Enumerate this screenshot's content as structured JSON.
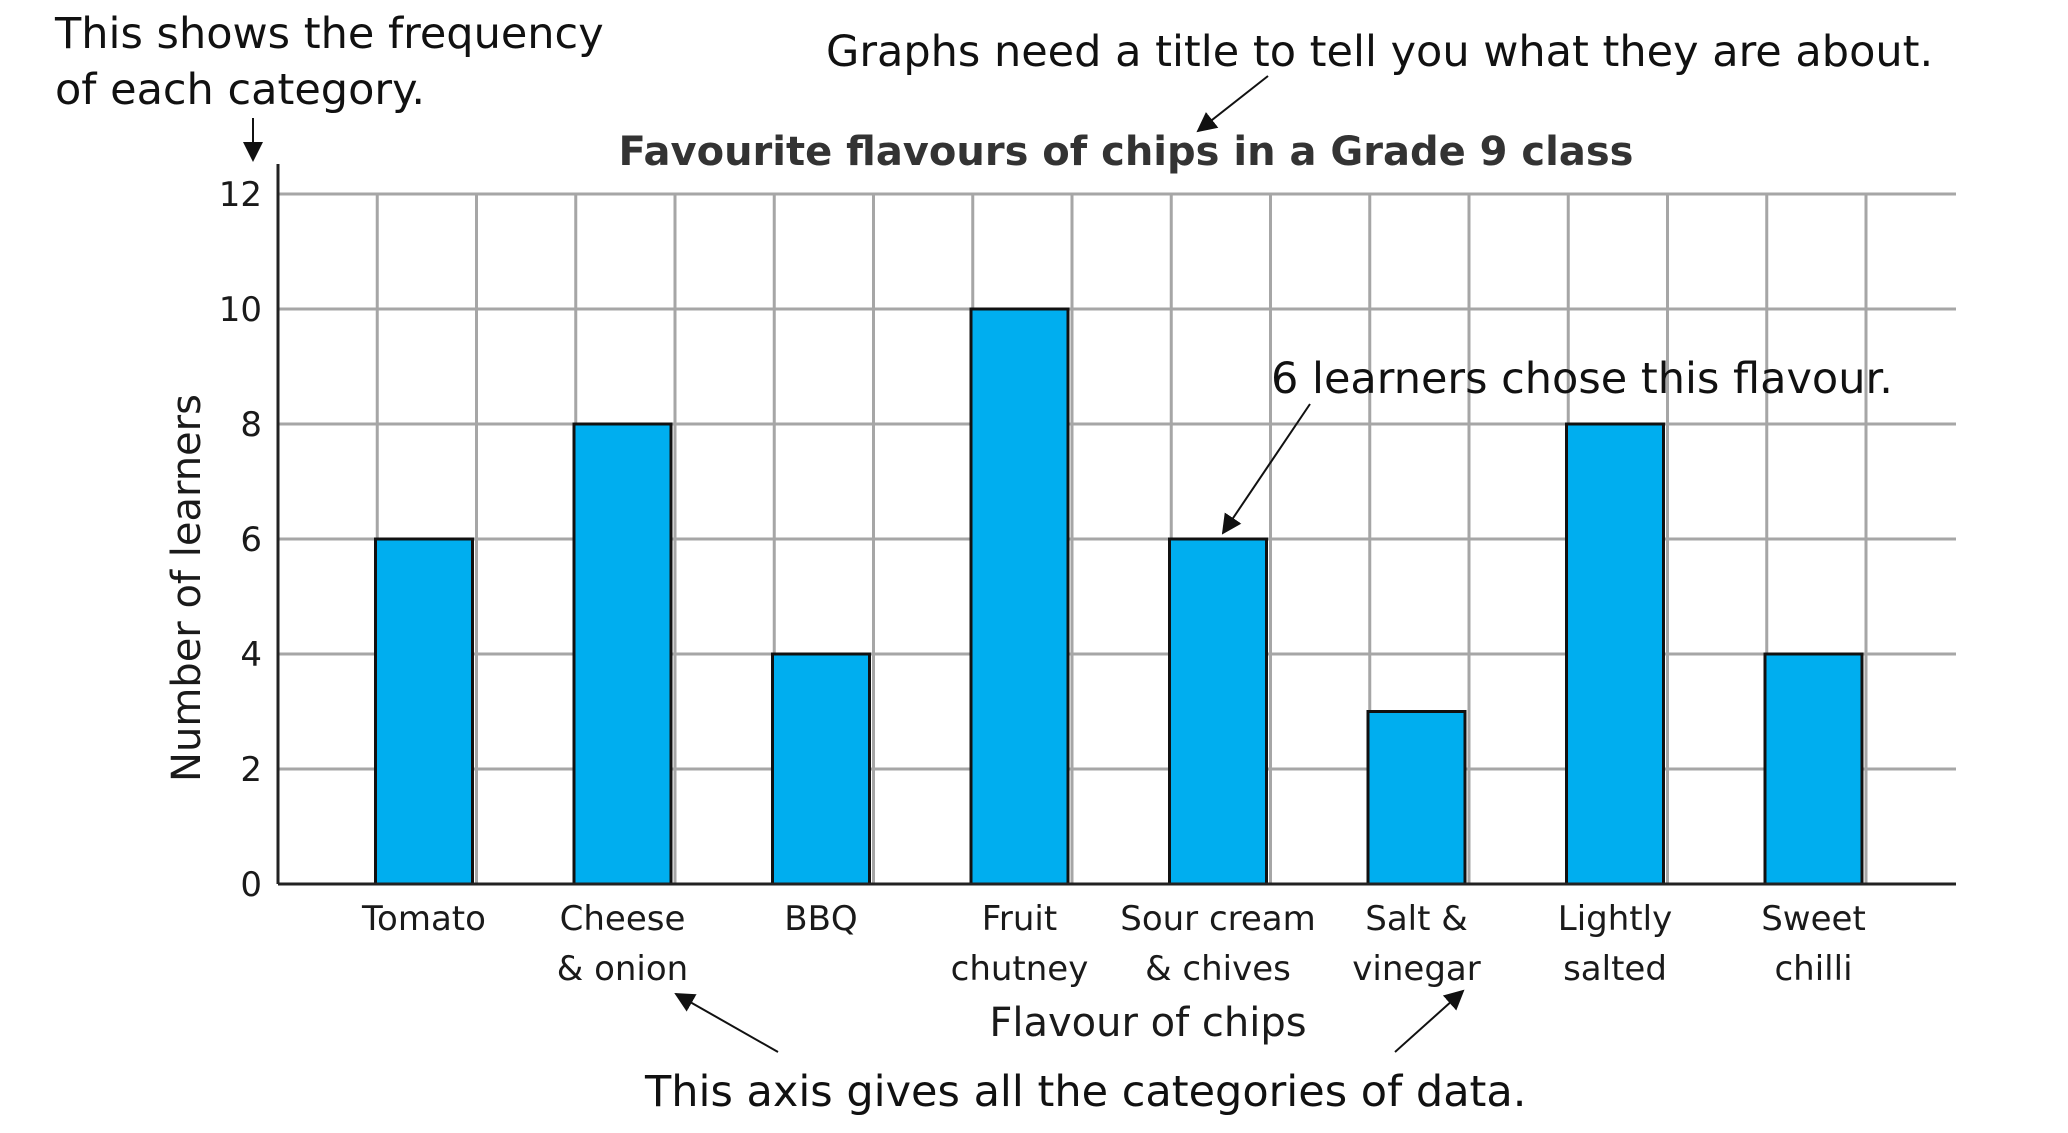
{
  "annotations": {
    "frequency": [
      "This shows the frequency",
      "of each category."
    ],
    "title_note": "Graphs need a title to tell you what they are about.",
    "bar_note": "6 learners chose this flavour.",
    "axis_note": "This axis gives all the categories of data."
  },
  "colors": {
    "bar": "#00aeef",
    "grid": "#a6a6a6",
    "axis": "#222222"
  },
  "chart_data": {
    "type": "bar",
    "title": "Favourite flavours of chips in a Grade 9 class",
    "xlabel": "Flavour of chips",
    "ylabel": "Number of learners",
    "ylim": [
      0,
      12
    ],
    "yticks": [
      0,
      2,
      4,
      6,
      8,
      10,
      12
    ],
    "grid": true,
    "categories": [
      [
        "Tomato"
      ],
      [
        "Cheese",
        "& onion"
      ],
      [
        "BBQ"
      ],
      [
        "Fruit",
        "chutney"
      ],
      [
        "Sour cream",
        "& chives"
      ],
      [
        "Salt &",
        "vinegar"
      ],
      [
        "Lightly",
        "salted"
      ],
      [
        "Sweet",
        "chilli"
      ]
    ],
    "values": [
      6,
      8,
      4,
      10,
      6,
      3,
      8,
      4
    ]
  }
}
